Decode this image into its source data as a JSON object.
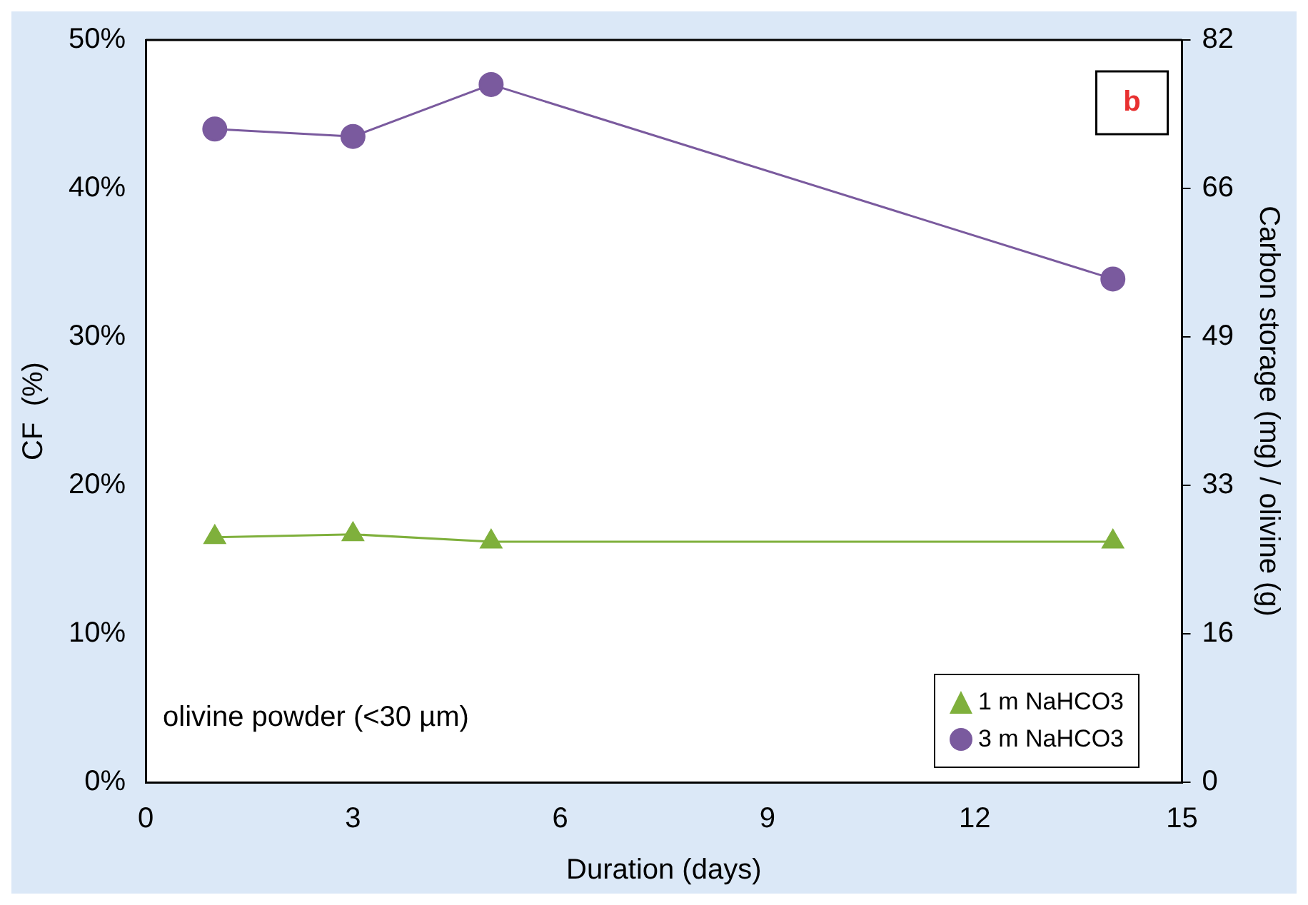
{
  "chart_data": {
    "type": "line",
    "xlabel": "Duration (days)",
    "ylabel": "CF  (%)",
    "y2label": "Carbon storage (mg) / olivine (g)",
    "x": [
      1,
      3,
      5,
      14
    ],
    "series": [
      {
        "name": "1 m NaHCO3",
        "color": "#7fb03c",
        "marker": "triangle",
        "values": [
          16.5,
          16.7,
          16.2,
          16.2
        ]
      },
      {
        "name": "3 m NaHCO3",
        "color": "#7a5a9e",
        "marker": "circle",
        "values": [
          44.0,
          43.5,
          47.0,
          33.9
        ]
      }
    ],
    "xlim": [
      0,
      15
    ],
    "xticks": [
      0,
      3,
      6,
      9,
      12,
      15
    ],
    "ylim": [
      0,
      50
    ],
    "yticks": [
      {
        "value": 0,
        "label": "0%"
      },
      {
        "value": 10,
        "label": "10%"
      },
      {
        "value": 20,
        "label": "20%"
      },
      {
        "value": 30,
        "label": "30%"
      },
      {
        "value": 40,
        "label": "40%"
      },
      {
        "value": 50,
        "label": "50%"
      }
    ],
    "y2lim": [
      0,
      82
    ],
    "y2ticks": [
      0,
      {
        "value": 16.4,
        "label": "16"
      },
      {
        "value": 32.8,
        "label": "33"
      },
      {
        "value": 49.2,
        "label": "49"
      },
      {
        "value": 65.6,
        "label": "66"
      },
      82
    ],
    "annotations": [
      "b",
      "olivine powder (<30 µm)"
    ],
    "legend": "bottom right",
    "grid": false,
    "line_style": "solid"
  }
}
